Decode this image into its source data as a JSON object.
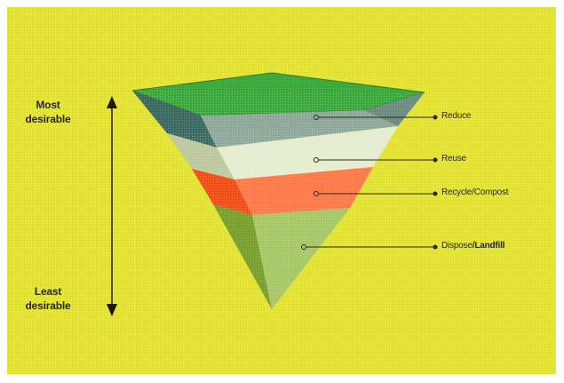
{
  "colors": {
    "background": "#e8e83a",
    "layer_top_face": "#3aa83a",
    "layer_reduce": "#8ea89a",
    "layer_reuse": "#e6ecd0",
    "layer_recycle": "#ff7a4a",
    "layer_dispose": "#a8c868"
  },
  "axis": {
    "top_line1": "Most",
    "top_line2": "desirable",
    "bottom_line1": "Least",
    "bottom_line2": "desirable"
  },
  "levels": [
    {
      "label": "Reduce"
    },
    {
      "label": "Reuse"
    },
    {
      "label": "Recycle/Compost"
    },
    {
      "label_part1": "Dispose",
      "label_part2": "/Landfill"
    }
  ]
}
